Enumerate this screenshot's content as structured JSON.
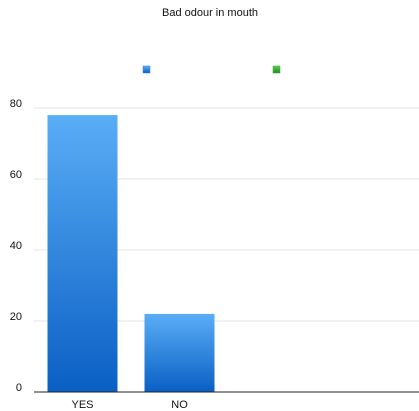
{
  "chart_data": {
    "type": "bar",
    "title": "Bad odour in mouth",
    "categories": [
      "YES",
      "NO"
    ],
    "series": [
      {
        "color": "#2f86e0",
        "values": [
          78,
          22
        ]
      },
      {
        "color": "#3aa53a",
        "values": [
          null,
          null
        ]
      }
    ],
    "ylim": [
      0,
      80
    ],
    "yticks": [
      0,
      20,
      40,
      60,
      80
    ],
    "grid": true
  }
}
